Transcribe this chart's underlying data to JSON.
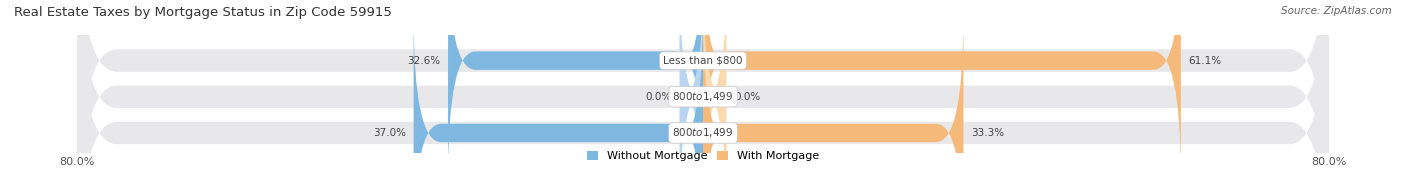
{
  "title": "Real Estate Taxes by Mortgage Status in Zip Code 59915",
  "source": "Source: ZipAtlas.com",
  "rows": [
    {
      "label": "Less than $800",
      "without_mortgage": 32.6,
      "with_mortgage": 61.1
    },
    {
      "label": "$800 to $1,499",
      "without_mortgage": 0.0,
      "with_mortgage": 0.0
    },
    {
      "label": "$800 to $1,499",
      "without_mortgage": 37.0,
      "with_mortgage": 33.3
    }
  ],
  "x_axis_left": 80.0,
  "x_axis_right": 80.0,
  "color_without": "#7eb8e0",
  "color_with": "#f5b97a",
  "color_without_light": "#b8d4ee",
  "color_with_light": "#f9d9ad",
  "bar_bg_color": "#e8e8ea",
  "bar_height": 0.62,
  "bar_gap": 0.18,
  "title_fontsize": 9.5,
  "source_fontsize": 7.5,
  "label_fontsize": 7.5,
  "tick_fontsize": 8,
  "legend_fontsize": 8
}
